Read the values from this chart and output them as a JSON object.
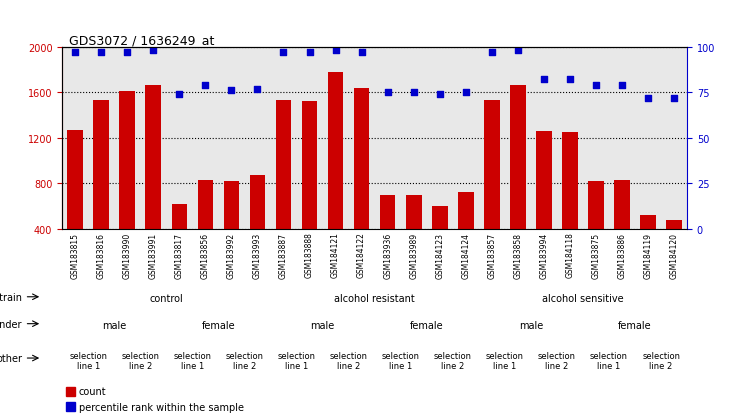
{
  "title": "GDS3072 / 1636249_at",
  "samples": [
    "GSM183815",
    "GSM183816",
    "GSM183990",
    "GSM183991",
    "GSM183817",
    "GSM183856",
    "GSM183992",
    "GSM183993",
    "GSM183887",
    "GSM183888",
    "GSM184121",
    "GSM184122",
    "GSM183936",
    "GSM183989",
    "GSM184123",
    "GSM184124",
    "GSM183857",
    "GSM183858",
    "GSM183994",
    "GSM184118",
    "GSM183875",
    "GSM183886",
    "GSM184119",
    "GSM184120"
  ],
  "counts": [
    1270,
    1530,
    1610,
    1660,
    620,
    830,
    820,
    870,
    1530,
    1520,
    1780,
    1640,
    700,
    700,
    600,
    720,
    1530,
    1660,
    1260,
    1250,
    820,
    830,
    520,
    480
  ],
  "percentiles": [
    97,
    97,
    97,
    98,
    74,
    79,
    76,
    77,
    97,
    97,
    98,
    97,
    75,
    75,
    74,
    75,
    97,
    98,
    82,
    82,
    79,
    79,
    72,
    72
  ],
  "ylim_left": [
    400,
    2000
  ],
  "ylim_right": [
    0,
    100
  ],
  "yticks_left": [
    400,
    800,
    1200,
    1600,
    2000
  ],
  "yticks_right": [
    0,
    25,
    50,
    75,
    100
  ],
  "bar_color": "#cc0000",
  "dot_color": "#0000cc",
  "bg_color": "#e8e8e8",
  "strain_groups": [
    {
      "label": "control",
      "start": 0,
      "end": 8,
      "color": "#b8e8b8"
    },
    {
      "label": "alcohol resistant",
      "start": 8,
      "end": 16,
      "color": "#90d890"
    },
    {
      "label": "alcohol sensitive",
      "start": 16,
      "end": 24,
      "color": "#50c850"
    }
  ],
  "gender_groups": [
    {
      "label": "male",
      "start": 0,
      "end": 4,
      "color": "#b8b8e8"
    },
    {
      "label": "female",
      "start": 4,
      "end": 8,
      "color": "#9898d8"
    },
    {
      "label": "male",
      "start": 8,
      "end": 12,
      "color": "#b8b8e8"
    },
    {
      "label": "female",
      "start": 12,
      "end": 16,
      "color": "#9898d8"
    },
    {
      "label": "male",
      "start": 16,
      "end": 20,
      "color": "#b8b8e8"
    },
    {
      "label": "female",
      "start": 20,
      "end": 24,
      "color": "#9898d8"
    }
  ],
  "other_groups": [
    {
      "label": "selection\nline 1",
      "start": 0,
      "end": 2,
      "color": "#e8b0b0"
    },
    {
      "label": "selection\nline 2",
      "start": 2,
      "end": 4,
      "color": "#c89090"
    },
    {
      "label": "selection\nline 1",
      "start": 4,
      "end": 6,
      "color": "#e8b0b0"
    },
    {
      "label": "selection\nline 2",
      "start": 6,
      "end": 8,
      "color": "#c89090"
    },
    {
      "label": "selection\nline 1",
      "start": 8,
      "end": 10,
      "color": "#e8b0b0"
    },
    {
      "label": "selection\nline 2",
      "start": 10,
      "end": 12,
      "color": "#c89090"
    },
    {
      "label": "selection\nline 1",
      "start": 12,
      "end": 14,
      "color": "#e8b0b0"
    },
    {
      "label": "selection\nline 2",
      "start": 14,
      "end": 16,
      "color": "#c89090"
    },
    {
      "label": "selection\nline 1",
      "start": 16,
      "end": 18,
      "color": "#e8b0b0"
    },
    {
      "label": "selection\nline 2",
      "start": 18,
      "end": 20,
      "color": "#c89090"
    },
    {
      "label": "selection\nline 1",
      "start": 20,
      "end": 22,
      "color": "#e8b0b0"
    },
    {
      "label": "selection\nline 2",
      "start": 22,
      "end": 24,
      "color": "#c89090"
    }
  ]
}
